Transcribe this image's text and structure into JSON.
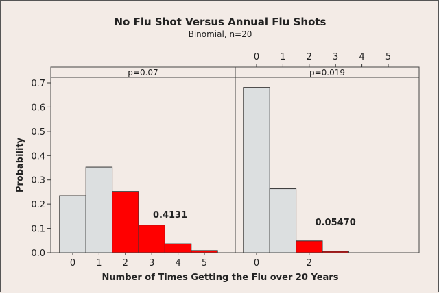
{
  "chart_data": {
    "type": "bar",
    "title": "No Flu Shot Versus Annual Flu Shots",
    "subtitle": "Binomial, n=20",
    "xlabel": "Number of Times Getting the Flu over 20 Years",
    "ylabel": "Probability",
    "ylim": [
      0,
      0.72
    ],
    "yticks": [
      "0.0",
      "0.1",
      "0.2",
      "0.3",
      "0.4",
      "0.5",
      "0.6",
      "0.7"
    ],
    "colors": {
      "background": "#f3ebe6",
      "bar": "#dcdfe0",
      "highlight": "#ff0000"
    },
    "panels": [
      {
        "label": "p=0.07",
        "x": [
          0,
          1,
          2,
          3,
          4,
          5
        ],
        "values": [
          0.2342,
          0.3526,
          0.2521,
          0.1139,
          0.0364,
          0.0088
        ],
        "highlighted_from": 2,
        "annotation": "0.4131",
        "xtick_labels_bottom": [
          "0",
          "1",
          "2",
          "3",
          "4",
          "5"
        ]
      },
      {
        "label": "p=0.019",
        "x": [
          0,
          1,
          2,
          3
        ],
        "values": [
          0.6812,
          0.2637,
          0.0485,
          0.0056
        ],
        "highlighted_from": 2,
        "annotation": "0.05470",
        "xtick_labels_top": [
          "0",
          "1",
          "2",
          "3",
          "4",
          "5"
        ],
        "xtick_labels_bottom": [
          "0",
          "2"
        ]
      }
    ]
  }
}
